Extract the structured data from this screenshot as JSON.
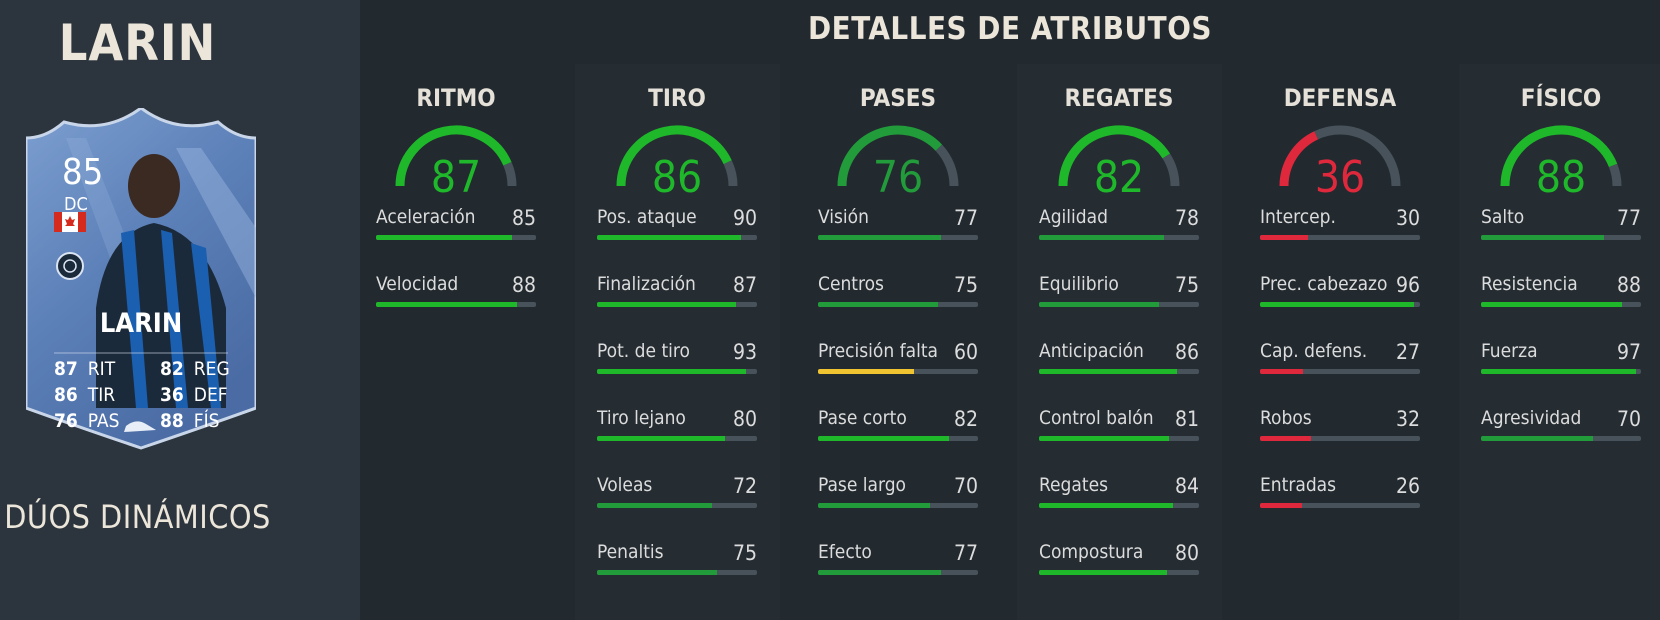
{
  "player": {
    "name": "LARIN",
    "promo": "DÚOS DINÁMICOS",
    "card": {
      "overall": "85",
      "position": "DC",
      "name": "LARIN",
      "stats": [
        {
          "value": "87",
          "label": "RIT"
        },
        {
          "value": "82",
          "label": "REG"
        },
        {
          "value": "86",
          "label": "TIR"
        },
        {
          "value": "36",
          "label": "DEF"
        },
        {
          "value": "76",
          "label": "PAS"
        },
        {
          "value": "88",
          "label": "FÍS"
        }
      ]
    }
  },
  "header": {
    "title": "DETALLES DE ATRIBUTOS"
  },
  "colors": {
    "green": "#1fb82a",
    "dark_green": "#229b3a",
    "yellow": "#f0c431",
    "red": "#e0283c",
    "track": "#47525a"
  },
  "categories": [
    {
      "title": "RITMO",
      "value": 87,
      "stats": [
        {
          "label": "Aceleración",
          "value": 85
        },
        {
          "label": "Velocidad",
          "value": 88
        }
      ]
    },
    {
      "title": "TIRO",
      "value": 86,
      "stats": [
        {
          "label": "Pos. ataque",
          "value": 90
        },
        {
          "label": "Finalización",
          "value": 87
        },
        {
          "label": "Pot. de tiro",
          "value": 93
        },
        {
          "label": "Tiro lejano",
          "value": 80
        },
        {
          "label": "Voleas",
          "value": 72
        },
        {
          "label": "Penaltis",
          "value": 75
        }
      ]
    },
    {
      "title": "PASES",
      "value": 76,
      "stats": [
        {
          "label": "Visión",
          "value": 77
        },
        {
          "label": "Centros",
          "value": 75
        },
        {
          "label": "Precisión falta",
          "value": 60
        },
        {
          "label": "Pase corto",
          "value": 82
        },
        {
          "label": "Pase largo",
          "value": 70
        },
        {
          "label": "Efecto",
          "value": 77
        }
      ]
    },
    {
      "title": "REGATES",
      "value": 82,
      "stats": [
        {
          "label": "Agilidad",
          "value": 78
        },
        {
          "label": "Equilibrio",
          "value": 75
        },
        {
          "label": "Anticipación",
          "value": 86
        },
        {
          "label": "Control balón",
          "value": 81
        },
        {
          "label": "Regates",
          "value": 84
        },
        {
          "label": "Compostura",
          "value": 80
        }
      ]
    },
    {
      "title": "DEFENSA",
      "value": 36,
      "stats": [
        {
          "label": "Intercep.",
          "value": 30
        },
        {
          "label": "Prec. cabezazo",
          "value": 96
        },
        {
          "label": "Cap. defens.",
          "value": 27
        },
        {
          "label": "Robos",
          "value": 32
        },
        {
          "label": "Entradas",
          "value": 26
        }
      ]
    },
    {
      "title": "FÍSICO",
      "value": 88,
      "stats": [
        {
          "label": "Salto",
          "value": 77
        },
        {
          "label": "Resistencia",
          "value": 88
        },
        {
          "label": "Fuerza",
          "value": 97
        },
        {
          "label": "Agresividad",
          "value": 70
        }
      ]
    }
  ]
}
